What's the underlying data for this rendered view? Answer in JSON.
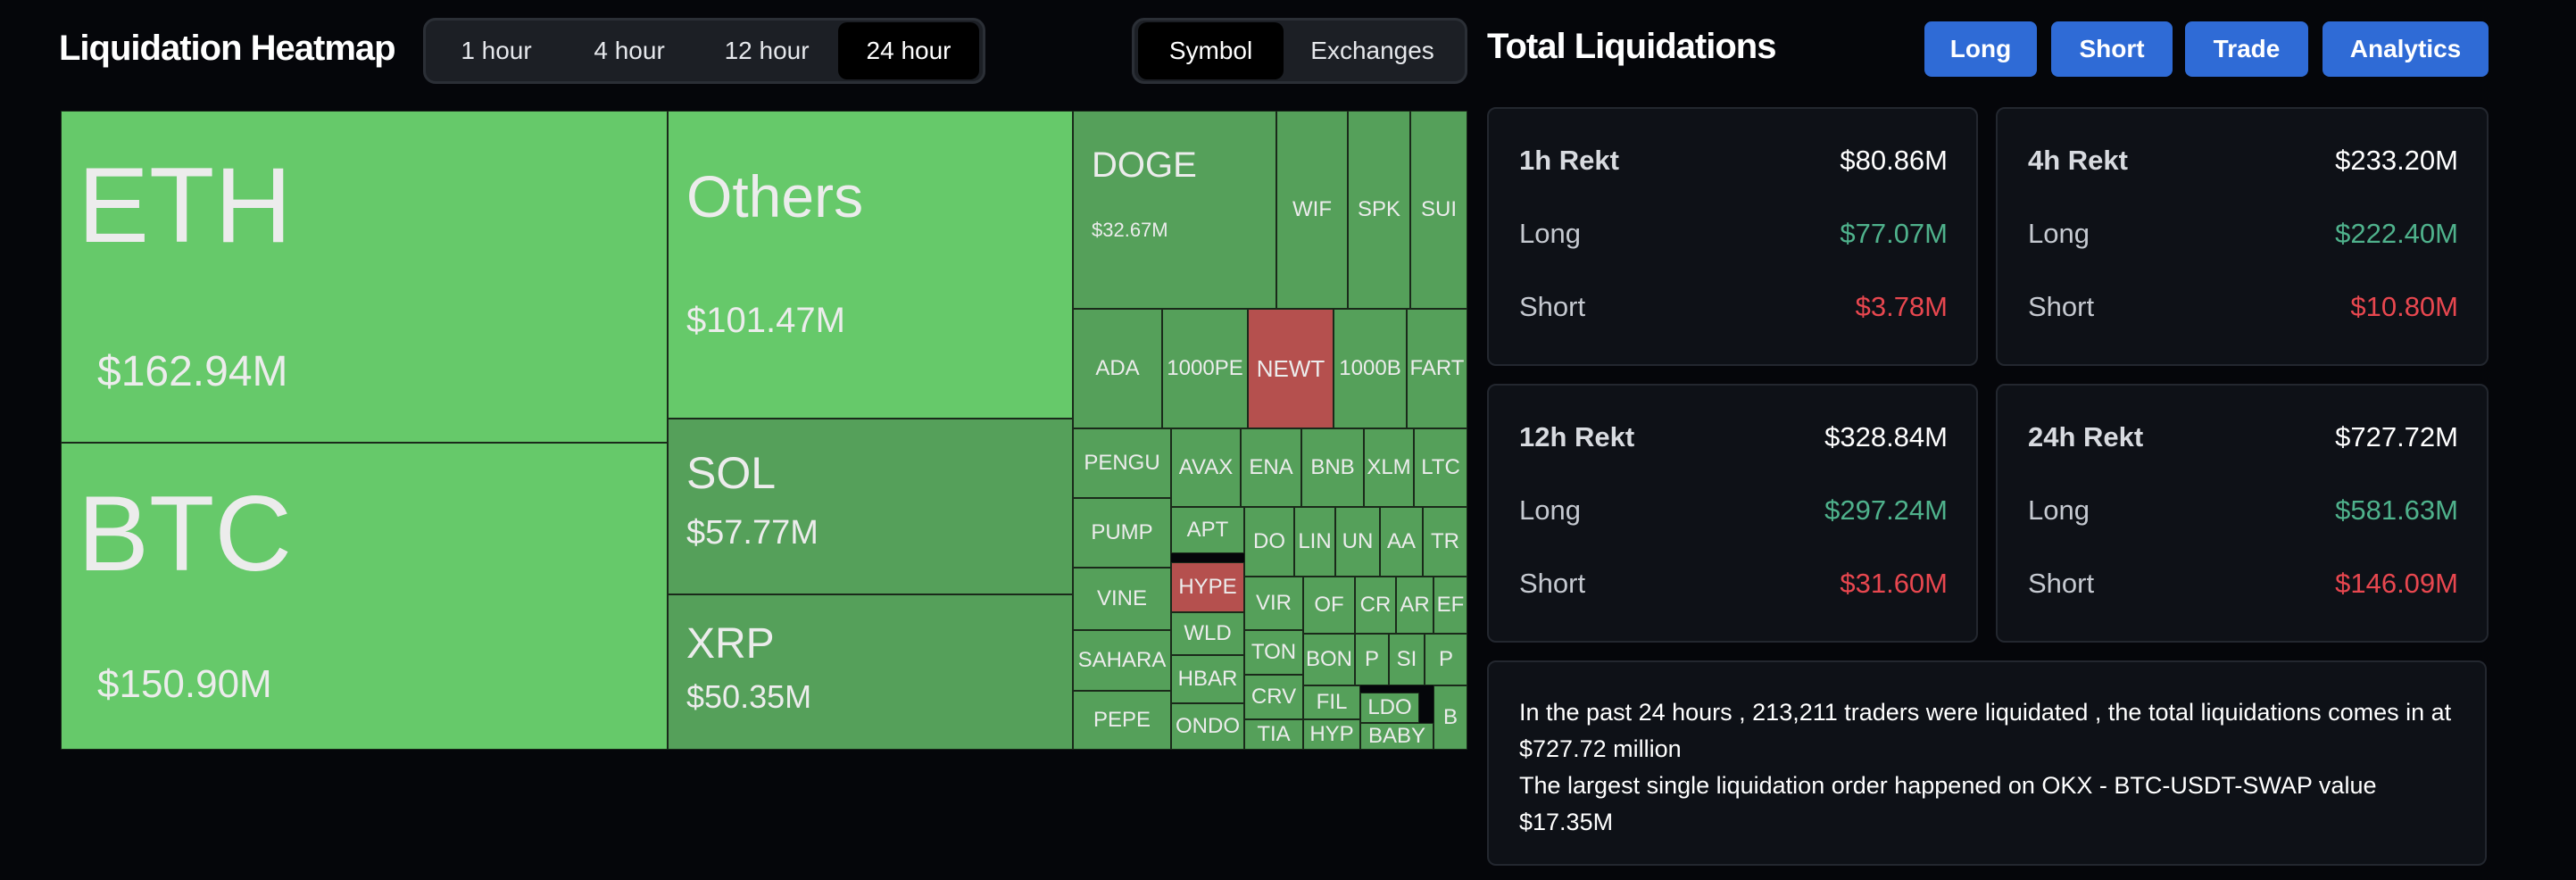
{
  "heatmap": {
    "title": "Liquidation Heatmap",
    "timeframes": [
      "1 hour",
      "4 hour",
      "12 hour",
      "24 hour"
    ],
    "active_timeframe": "24 hour",
    "views": [
      "Symbol",
      "Exchanges"
    ],
    "active_view": "Symbol",
    "colors": {
      "bright_green": "#66c96a",
      "green": "#55a05a",
      "red": "#b5504e"
    },
    "items": [
      {
        "symbol": "ETH",
        "value": "$162.94M",
        "color": "bright_green"
      },
      {
        "symbol": "BTC",
        "value": "$150.90M",
        "color": "bright_green"
      },
      {
        "symbol": "Others",
        "value": "$101.47M",
        "color": "bright_green"
      },
      {
        "symbol": "SOL",
        "value": "$57.77M",
        "color": "green"
      },
      {
        "symbol": "XRP",
        "value": "$50.35M",
        "color": "green"
      },
      {
        "symbol": "DOGE",
        "value": "$32.67M",
        "color": "green"
      },
      {
        "symbol": "WIF",
        "color": "green"
      },
      {
        "symbol": "SPK",
        "color": "green"
      },
      {
        "symbol": "SUI",
        "color": "green"
      },
      {
        "symbol": "ADA",
        "color": "green"
      },
      {
        "symbol": "1000PE",
        "color": "green"
      },
      {
        "symbol": "NEWT",
        "color": "red"
      },
      {
        "symbol": "1000B",
        "color": "green"
      },
      {
        "symbol": "FART",
        "color": "green"
      },
      {
        "symbol": "PENGU",
        "color": "green"
      },
      {
        "symbol": "AVAX",
        "color": "green"
      },
      {
        "symbol": "ENA",
        "color": "green"
      },
      {
        "symbol": "BNB",
        "color": "green"
      },
      {
        "symbol": "XLM",
        "color": "green"
      },
      {
        "symbol": "LTC",
        "color": "green"
      },
      {
        "symbol": "PUMP",
        "color": "green"
      },
      {
        "symbol": "APT",
        "color": "green"
      },
      {
        "symbol": "DO",
        "color": "green"
      },
      {
        "symbol": "LIN",
        "color": "green"
      },
      {
        "symbol": "UN",
        "color": "green"
      },
      {
        "symbol": "AA",
        "color": "green"
      },
      {
        "symbol": "TR",
        "color": "green"
      },
      {
        "symbol": "VINE",
        "color": "green"
      },
      {
        "symbol": "HYPE",
        "color": "red"
      },
      {
        "symbol": "VIR",
        "color": "green"
      },
      {
        "symbol": "OF",
        "color": "green"
      },
      {
        "symbol": "CR",
        "color": "green"
      },
      {
        "symbol": "AR",
        "color": "green"
      },
      {
        "symbol": "EF",
        "color": "green"
      },
      {
        "symbol": "SAHARA",
        "color": "green"
      },
      {
        "symbol": "WLD",
        "color": "green"
      },
      {
        "symbol": "TON",
        "color": "green"
      },
      {
        "symbol": "BON",
        "color": "green"
      },
      {
        "symbol": "P",
        "color": "green"
      },
      {
        "symbol": "SI",
        "color": "green"
      },
      {
        "symbol": "P",
        "color": "green"
      },
      {
        "symbol": "HBAR",
        "color": "green"
      },
      {
        "symbol": "CRV",
        "color": "green"
      },
      {
        "symbol": "FIL",
        "color": "green"
      },
      {
        "symbol": "PEPE",
        "color": "green"
      },
      {
        "symbol": "ONDO",
        "color": "green"
      },
      {
        "symbol": "TIA",
        "color": "green"
      },
      {
        "symbol": "HYP",
        "color": "green"
      },
      {
        "symbol": "LDO",
        "color": "green"
      },
      {
        "symbol": "BABY",
        "color": "green"
      },
      {
        "symbol": "B",
        "color": "green"
      }
    ]
  },
  "totals": {
    "title": "Total Liquidations",
    "buttons": [
      "Long",
      "Short",
      "Trade",
      "Analytics"
    ],
    "cards": [
      {
        "label": "1h Rekt",
        "total": "$80.86M",
        "long_label": "Long",
        "long": "$77.07M",
        "short_label": "Short",
        "short": "$3.78M"
      },
      {
        "label": "4h Rekt",
        "total": "$233.20M",
        "long_label": "Long",
        "long": "$222.40M",
        "short_label": "Short",
        "short": "$10.80M"
      },
      {
        "label": "12h Rekt",
        "total": "$328.84M",
        "long_label": "Long",
        "long": "$297.24M",
        "short_label": "Short",
        "short": "$31.60M"
      },
      {
        "label": "24h Rekt",
        "total": "$727.72M",
        "long_label": "Long",
        "long": "$581.63M",
        "short_label": "Short",
        "short": "$146.09M"
      }
    ],
    "summary_line1": "In the past 24 hours , 213,211 traders were liquidated , the total liquidations comes in at $727.72 million",
    "summary_line2": "The largest single liquidation order happened on OKX - BTC-USDT-SWAP value $17.35M"
  }
}
